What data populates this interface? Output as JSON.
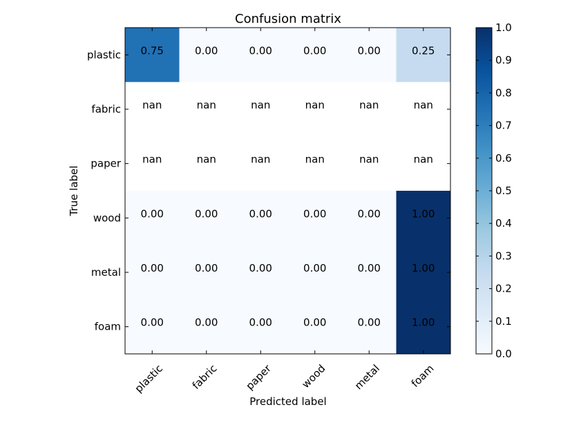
{
  "chart_data": {
    "type": "heatmap",
    "title": "Confusion matrix",
    "xlabel": "Predicted label",
    "ylabel": "True label",
    "x_categories": [
      "plastic",
      "fabric",
      "paper",
      "wood",
      "metal",
      "foam"
    ],
    "y_categories": [
      "plastic",
      "fabric",
      "paper",
      "wood",
      "metal",
      "foam"
    ],
    "values": [
      [
        0.75,
        0.0,
        0.0,
        0.0,
        0.0,
        0.25
      ],
      [
        null,
        null,
        null,
        null,
        null,
        null
      ],
      [
        null,
        null,
        null,
        null,
        null,
        null
      ],
      [
        0.0,
        0.0,
        0.0,
        0.0,
        0.0,
        1.0
      ],
      [
        0.0,
        0.0,
        0.0,
        0.0,
        0.0,
        1.0
      ],
      [
        0.0,
        0.0,
        0.0,
        0.0,
        0.0,
        1.0
      ]
    ],
    "cell_labels": [
      [
        "0.75",
        "0.00",
        "0.00",
        "0.00",
        "0.00",
        "0.25"
      ],
      [
        "nan",
        "nan",
        "nan",
        "nan",
        "nan",
        "nan"
      ],
      [
        "nan",
        "nan",
        "nan",
        "nan",
        "nan",
        "nan"
      ],
      [
        "0.00",
        "0.00",
        "0.00",
        "0.00",
        "0.00",
        "1.00"
      ],
      [
        "0.00",
        "0.00",
        "0.00",
        "0.00",
        "0.00",
        "1.00"
      ],
      [
        "0.00",
        "0.00",
        "0.00",
        "0.00",
        "0.00",
        "1.00"
      ]
    ],
    "colormap": "Blues",
    "colorbar": {
      "range": [
        0.0,
        1.0
      ],
      "ticks": [
        "0.0",
        "0.1",
        "0.2",
        "0.3",
        "0.4",
        "0.5",
        "0.6",
        "0.7",
        "0.8",
        "0.9",
        "1.0"
      ]
    },
    "grid": false
  }
}
